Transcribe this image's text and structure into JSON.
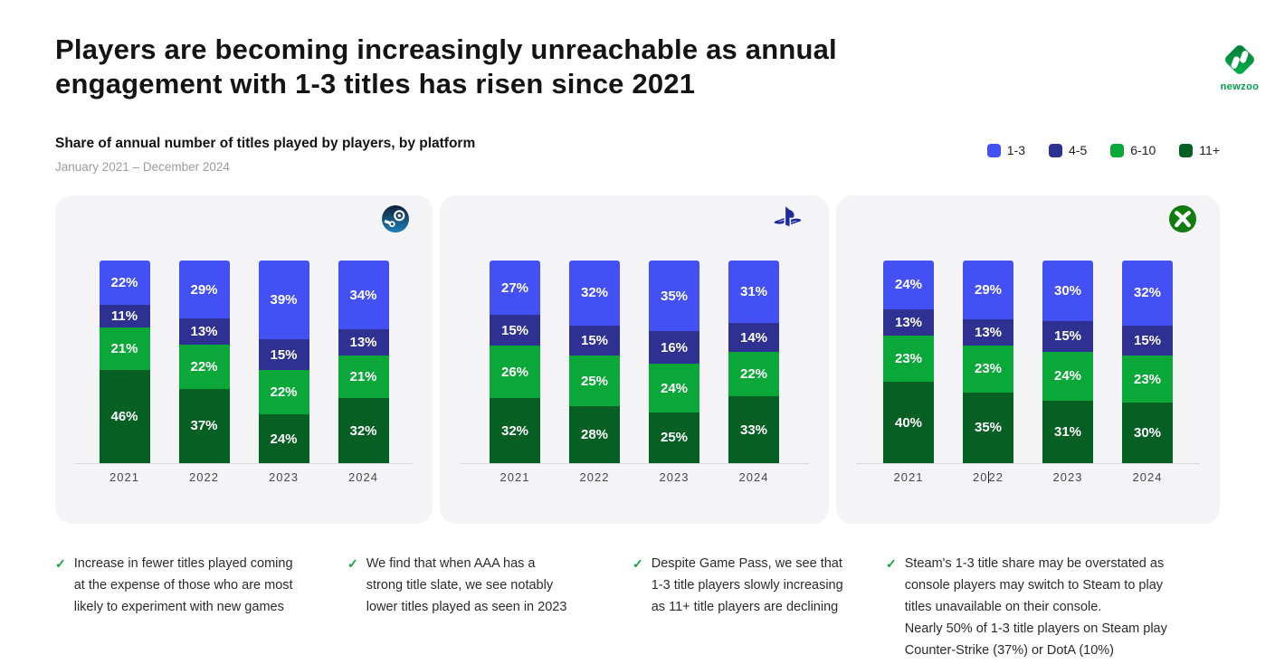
{
  "header": {
    "title": "Players are becoming increasingly unreachable as annual\nengagement with 1-3 titles has risen since 2021",
    "subtitle": "Share of annual number of titles played by players, by platform",
    "period": "January 2021 – December 2024",
    "brand": "newzoo"
  },
  "legend": [
    {
      "label": "1-3",
      "color": "#4350f3"
    },
    {
      "label": "4-5",
      "color": "#2e3192"
    },
    {
      "label": "6-10",
      "color": "#09a838"
    },
    {
      "label": "11+",
      "color": "#076023"
    }
  ],
  "chart_data": [
    {
      "type": "bar",
      "stacked": true,
      "unit": "%",
      "platform": "Steam",
      "categories": [
        "2021",
        "2022",
        "2023",
        "2024"
      ],
      "series": [
        {
          "name": "1-3",
          "values": [
            22,
            29,
            39,
            34
          ]
        },
        {
          "name": "4-5",
          "values": [
            11,
            13,
            15,
            13
          ]
        },
        {
          "name": "6-10",
          "values": [
            21,
            22,
            22,
            21
          ]
        },
        {
          "name": "11+",
          "values": [
            46,
            37,
            24,
            32
          ]
        }
      ]
    },
    {
      "type": "bar",
      "stacked": true,
      "unit": "%",
      "platform": "PlayStation",
      "categories": [
        "2021",
        "2022",
        "2023",
        "2024"
      ],
      "series": [
        {
          "name": "1-3",
          "values": [
            27,
            32,
            35,
            31
          ]
        },
        {
          "name": "4-5",
          "values": [
            15,
            15,
            16,
            14
          ]
        },
        {
          "name": "6-10",
          "values": [
            26,
            25,
            24,
            22
          ]
        },
        {
          "name": "11+",
          "values": [
            32,
            28,
            25,
            33
          ]
        }
      ]
    },
    {
      "type": "bar",
      "stacked": true,
      "unit": "%",
      "platform": "Xbox",
      "categories": [
        "2021",
        "2022",
        "2023",
        "2024"
      ],
      "cursor_year_index": 1,
      "series": [
        {
          "name": "1-3",
          "values": [
            24,
            29,
            30,
            32
          ]
        },
        {
          "name": "4-5",
          "values": [
            13,
            13,
            15,
            15
          ]
        },
        {
          "name": "6-10",
          "values": [
            23,
            23,
            24,
            23
          ]
        },
        {
          "name": "11+",
          "values": [
            40,
            35,
            31,
            30
          ]
        }
      ]
    }
  ],
  "insights": [
    {
      "text": "Increase in fewer titles played coming\nat the expense of those who are most\nlikely to experiment with new games"
    },
    {
      "text": "We find that when AAA has a\nstrong title slate, we see notably\nlower titles played as seen in 2023"
    },
    {
      "text": "Despite Game Pass, we see that\n1-3 title players slowly increasing\nas 11+ title players are declining"
    },
    {
      "text": "Steam's 1-3 title share may be overstated as\nconsole players may switch to Steam to play\ntitles unavailable on their console.\nNearly 50% of 1-3 title players on Steam play\nCounter-Strike (37%) or DotA (10%)"
    }
  ],
  "icons": {
    "check": "✓"
  }
}
